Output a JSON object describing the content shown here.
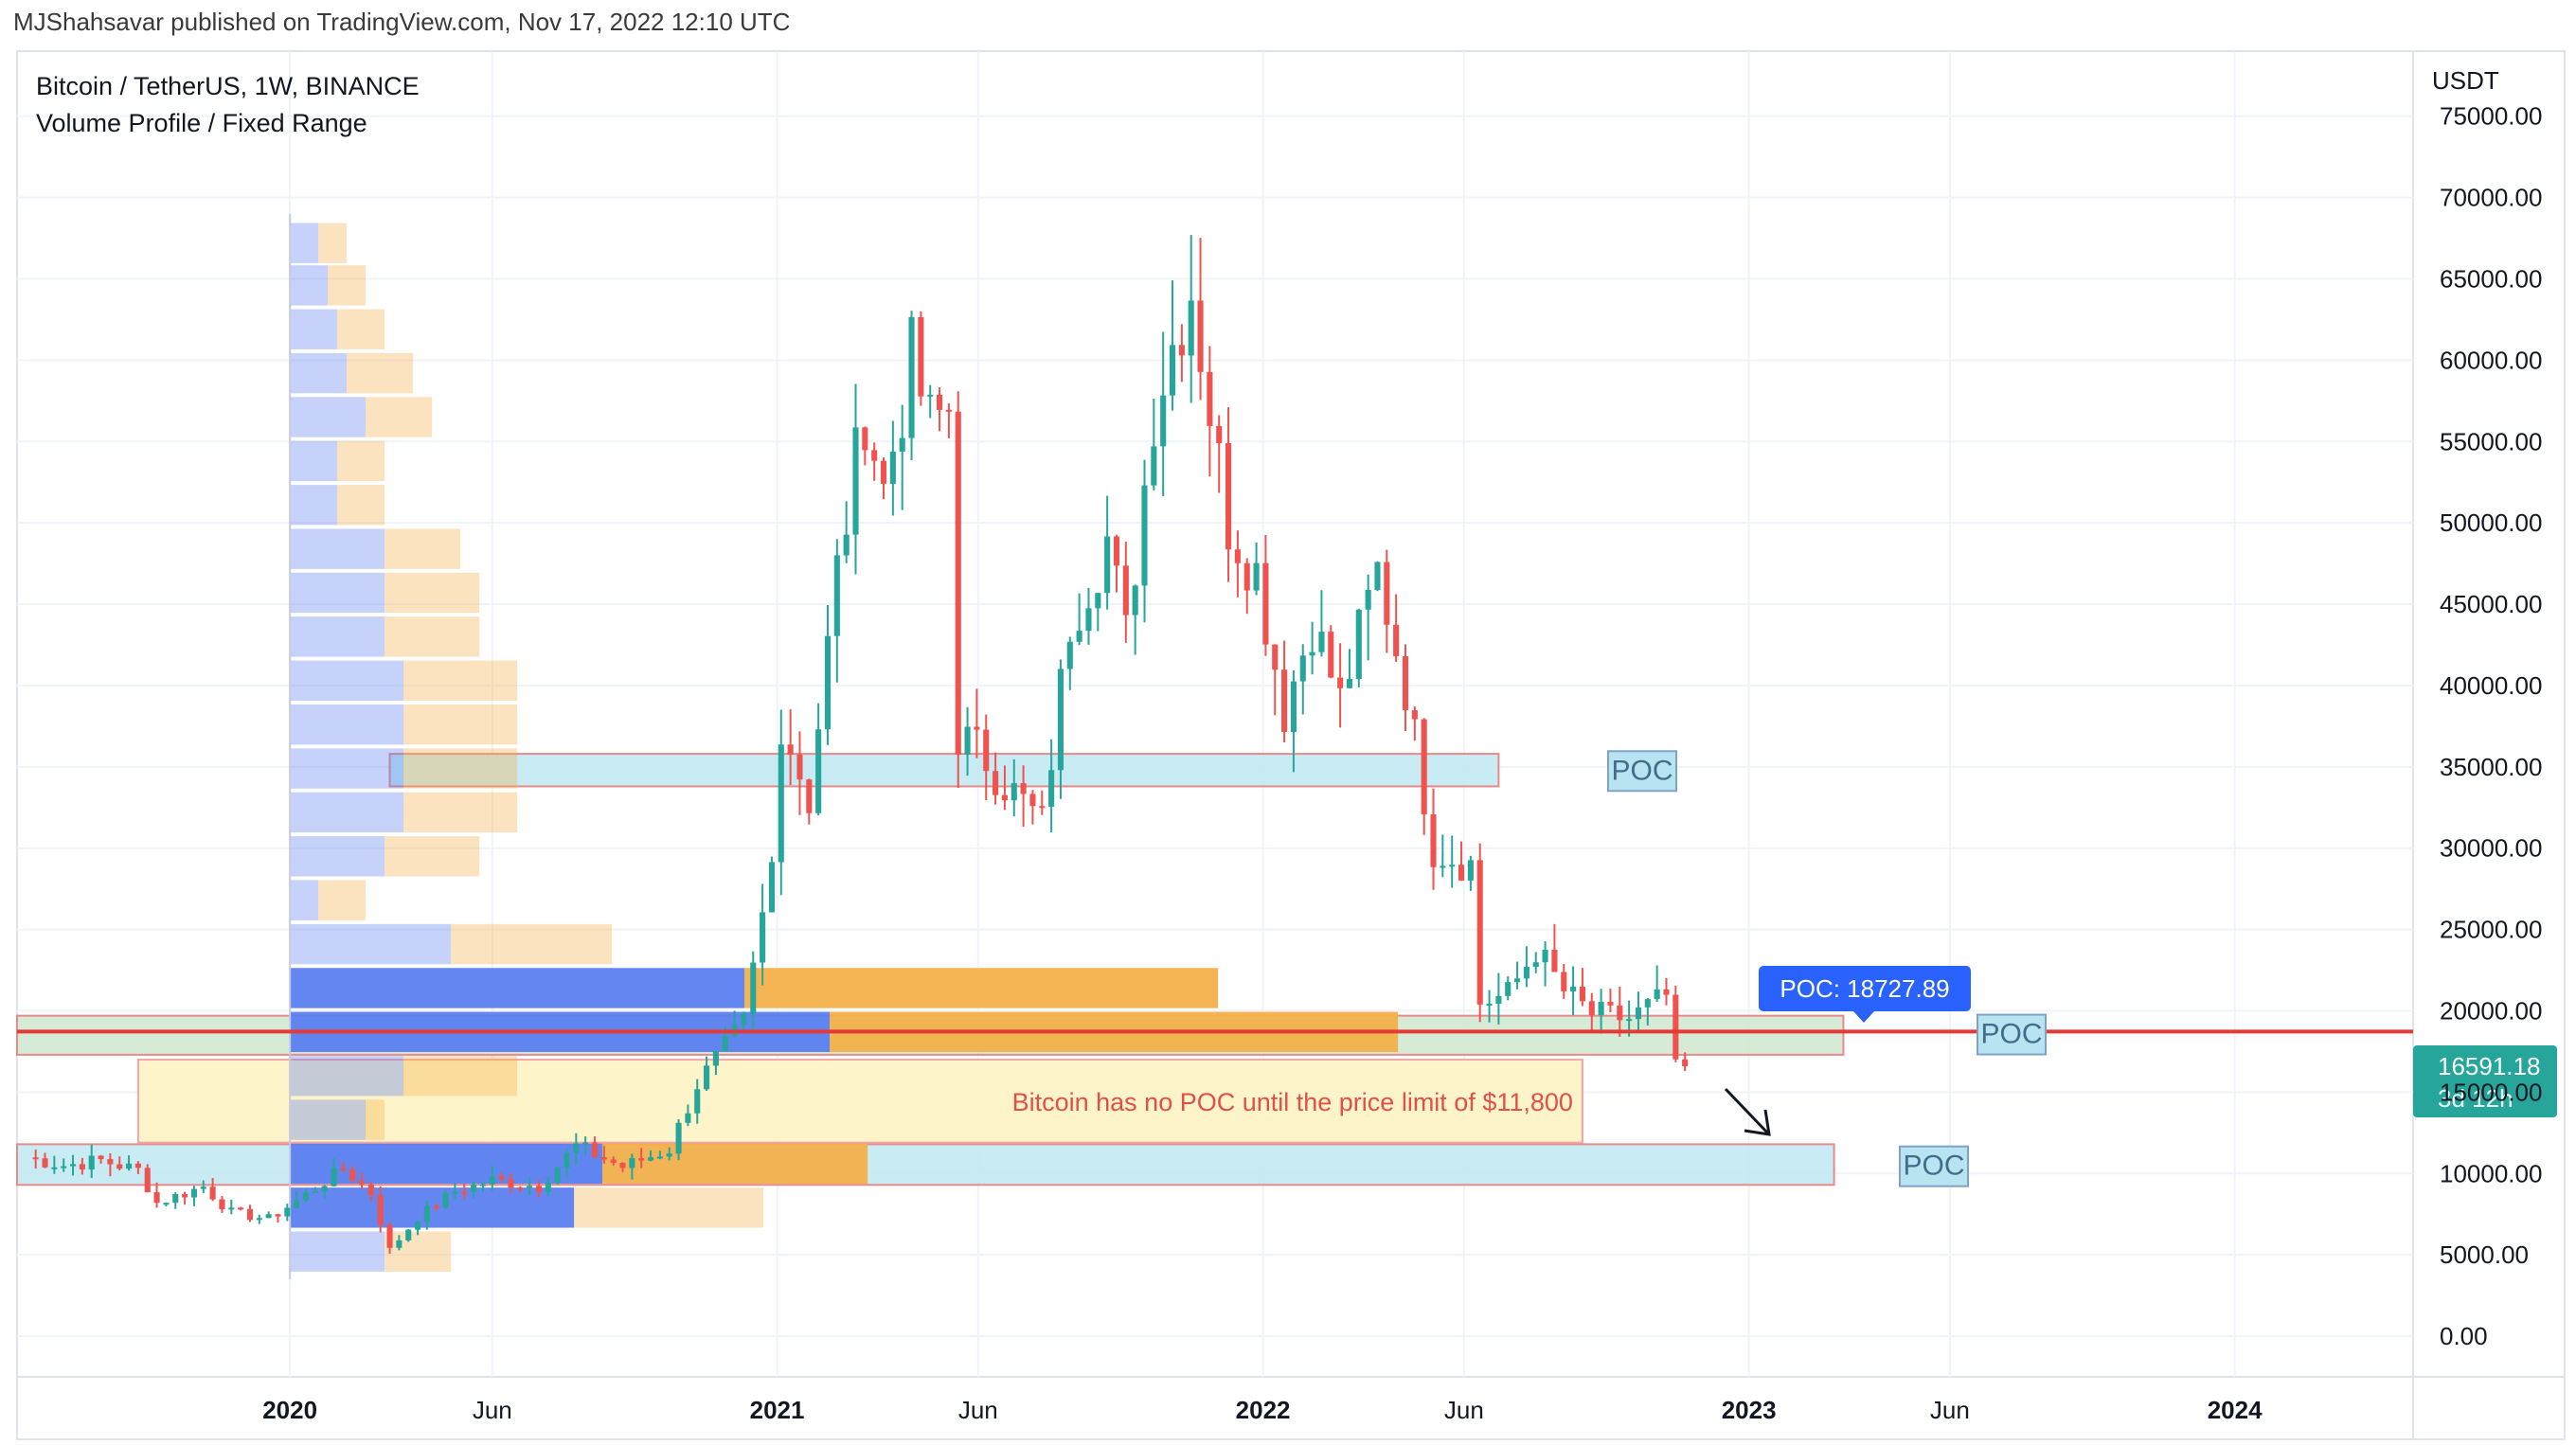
{
  "publisher": "MJShahsavar published on TradingView.com, Nov 17, 2022 12:10 UTC",
  "legend": {
    "symbol": "Bitcoin / TetherUS, 1W, BINANCE",
    "indicator": "Volume Profile / Fixed Range"
  },
  "colors": {
    "up": "#26a69a",
    "down": "#ef5350",
    "poc_line": "#e53935",
    "price_badge": "#26a69a",
    "poc_badge": "#2962ff",
    "vp_up": "#5b7fef",
    "vp_down": "#f3b04a",
    "zone_blue": "#bfe7f1",
    "zone_green": "#cfe8cf",
    "zone_yellow": "#fdf3c4"
  },
  "chart_data": {
    "type": "candlestick",
    "y_unit": "USDT",
    "ylim": [
      -2500,
      79000
    ],
    "y_ticks": [
      "75000.00",
      "70000.00",
      "65000.00",
      "60000.00",
      "55000.00",
      "50000.00",
      "45000.00",
      "40000.00",
      "35000.00",
      "30000.00",
      "25000.00",
      "20000.00",
      "15000.00",
      "10000.00",
      "5000.00",
      "0.00"
    ],
    "x_ticks": [
      {
        "label": "2020",
        "date": "2020-01-01",
        "bold": true
      },
      {
        "label": "Jun",
        "date": "2020-06-01",
        "bold": false
      },
      {
        "label": "2021",
        "date": "2021-01-01",
        "bold": true
      },
      {
        "label": "Jun",
        "date": "2021-06-01",
        "bold": false
      },
      {
        "label": "2022",
        "date": "2022-01-01",
        "bold": true
      },
      {
        "label": "Jun",
        "date": "2022-06-01",
        "bold": false
      },
      {
        "label": "2023",
        "date": "2023-01-01",
        "bold": true
      },
      {
        "label": "Jun",
        "date": "2023-06-01",
        "bold": false
      },
      {
        "label": "2024",
        "date": "2024-01-01",
        "bold": true
      }
    ],
    "x_range": [
      "2019-06-10",
      "2024-05-14"
    ],
    "price_path": [
      [
        "2019-06-17",
        11000
      ],
      [
        "2019-07-15",
        10500
      ],
      [
        "2019-08-12",
        10800
      ],
      [
        "2019-09-09",
        10200
      ],
      [
        "2019-09-23",
        8200
      ],
      [
        "2019-10-28",
        9200
      ],
      [
        "2019-11-18",
        7600
      ],
      [
        "2019-12-16",
        7200
      ],
      [
        "2020-01-13",
        8700
      ],
      [
        "2020-02-10",
        10300
      ],
      [
        "2020-03-02",
        8800
      ],
      [
        "2020-03-16",
        5300
      ],
      [
        "2020-04-06",
        7300
      ],
      [
        "2020-05-04",
        8900
      ],
      [
        "2020-06-01",
        9600
      ],
      [
        "2020-07-06",
        9200
      ],
      [
        "2020-08-03",
        11700
      ],
      [
        "2020-09-07",
        10400
      ],
      [
        "2020-10-12",
        11500
      ],
      [
        "2020-11-02",
        15500
      ],
      [
        "2020-12-07",
        19200
      ],
      [
        "2020-12-28",
        29000
      ],
      [
        "2021-01-04",
        38000
      ],
      [
        "2021-01-25",
        33000
      ],
      [
        "2021-02-15",
        47000
      ],
      [
        "2021-03-08",
        57000
      ],
      [
        "2021-03-22",
        52000
      ],
      [
        "2021-04-12",
        60000
      ],
      [
        "2021-04-26",
        56000
      ],
      [
        "2021-05-10",
        57000
      ],
      [
        "2021-05-17",
        37000
      ],
      [
        "2021-06-07",
        35500
      ],
      [
        "2021-06-21",
        34000
      ],
      [
        "2021-07-19",
        31500
      ],
      [
        "2021-08-09",
        44000
      ],
      [
        "2021-09-06",
        49000
      ],
      [
        "2021-09-20",
        43000
      ],
      [
        "2021-10-11",
        57000
      ],
      [
        "2021-10-25",
        61000
      ],
      [
        "2021-11-08",
        64500
      ],
      [
        "2021-11-22",
        57000
      ],
      [
        "2021-12-06",
        50000
      ],
      [
        "2021-12-27",
        47000
      ],
      [
        "2022-01-17",
        38500
      ],
      [
        "2022-02-07",
        44000
      ],
      [
        "2022-02-28",
        39000
      ],
      [
        "2022-03-28",
        47000
      ],
      [
        "2022-04-18",
        40000
      ],
      [
        "2022-05-09",
        30000
      ],
      [
        "2022-06-06",
        29000
      ],
      [
        "2022-06-13",
        20500
      ],
      [
        "2022-07-04",
        21000
      ],
      [
        "2022-07-25",
        23800
      ],
      [
        "2022-08-15",
        21200
      ],
      [
        "2022-09-05",
        19800
      ],
      [
        "2022-10-03",
        19500
      ],
      [
        "2022-10-31",
        20900
      ],
      [
        "2022-11-07",
        16300
      ],
      [
        "2022-11-14",
        16591.18
      ]
    ],
    "volume_profile": {
      "start_date": "2020-01-01",
      "rows": [
        {
          "price": 67200,
          "up": 0.03,
          "down": 0.03
        },
        {
          "price": 64600,
          "up": 0.04,
          "down": 0.04
        },
        {
          "price": 61900,
          "up": 0.05,
          "down": 0.05
        },
        {
          "price": 59200,
          "up": 0.06,
          "down": 0.07
        },
        {
          "price": 56500,
          "up": 0.08,
          "down": 0.07
        },
        {
          "price": 53800,
          "up": 0.05,
          "down": 0.05
        },
        {
          "price": 51100,
          "up": 0.05,
          "down": 0.05
        },
        {
          "price": 48400,
          "up": 0.1,
          "down": 0.08
        },
        {
          "price": 45700,
          "up": 0.1,
          "down": 0.1
        },
        {
          "price": 43000,
          "up": 0.1,
          "down": 0.1
        },
        {
          "price": 40300,
          "up": 0.12,
          "down": 0.12
        },
        {
          "price": 37600,
          "up": 0.12,
          "down": 0.12
        },
        {
          "price": 34900,
          "up": 0.12,
          "down": 0.12
        },
        {
          "price": 32200,
          "up": 0.12,
          "down": 0.12
        },
        {
          "price": 29500,
          "up": 0.1,
          "down": 0.1
        },
        {
          "price": 26800,
          "up": 0.03,
          "down": 0.05
        },
        {
          "price": 24100,
          "up": 0.17,
          "down": 0.17
        },
        {
          "price": 21400,
          "up": 0.48,
          "down": 0.5
        },
        {
          "price": 18700,
          "up": 0.57,
          "down": 0.6
        },
        {
          "price": 16000,
          "up": 0.12,
          "down": 0.12
        },
        {
          "price": 13300,
          "up": 0.08,
          "down": 0.02
        },
        {
          "price": 10600,
          "up": 0.33,
          "down": 0.28
        },
        {
          "price": 7900,
          "up": 0.3,
          "down": 0.2
        },
        {
          "price": 5200,
          "up": 0.1,
          "down": 0.07
        }
      ]
    },
    "zones": [
      {
        "label": "POC",
        "type": "blue",
        "start": "2020-03-16",
        "end": "2022-06-27",
        "low": 33800,
        "high": 35800
      },
      {
        "label": "POC",
        "type": "green",
        "start": "2019-06-10",
        "end": "2023-03-13",
        "low": 17300,
        "high": 19700
      },
      {
        "label": "POC",
        "type": "blue",
        "start": "2019-06-10",
        "end": "2023-03-06",
        "low": 9300,
        "high": 11800
      }
    ],
    "poc_value": 18727.89,
    "note": "Bitcoin has no POC until the price limit of $11,800",
    "last_price": "16591.18",
    "last_price_countdown": "3d 12h"
  },
  "labels": {
    "poc_badge": "POC: 18727.89",
    "poc": "POC"
  }
}
